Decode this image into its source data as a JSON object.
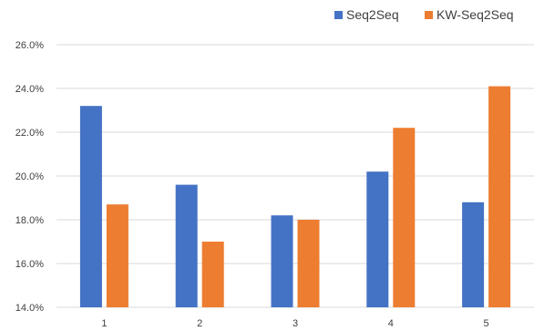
{
  "chart_data": {
    "type": "bar",
    "title": "",
    "xlabel": "",
    "ylabel": "",
    "categories": [
      "1",
      "2",
      "3",
      "4",
      "5"
    ],
    "series": [
      {
        "name": "Seq2Seq",
        "color": "#4472c4",
        "values": [
          23.2,
          19.6,
          18.2,
          20.2,
          18.8
        ]
      },
      {
        "name": "KW-Seq2Seq",
        "color": "#ed7d31",
        "values": [
          18.7,
          17.0,
          18.0,
          22.2,
          24.1
        ]
      }
    ],
    "ylim": [
      14.0,
      26.0
    ],
    "yticks": [
      "14.0%",
      "16.0%",
      "18.0%",
      "20.0%",
      "22.0%",
      "24.0%",
      "26.0%"
    ],
    "grid": true,
    "legend_position": "top-right"
  }
}
